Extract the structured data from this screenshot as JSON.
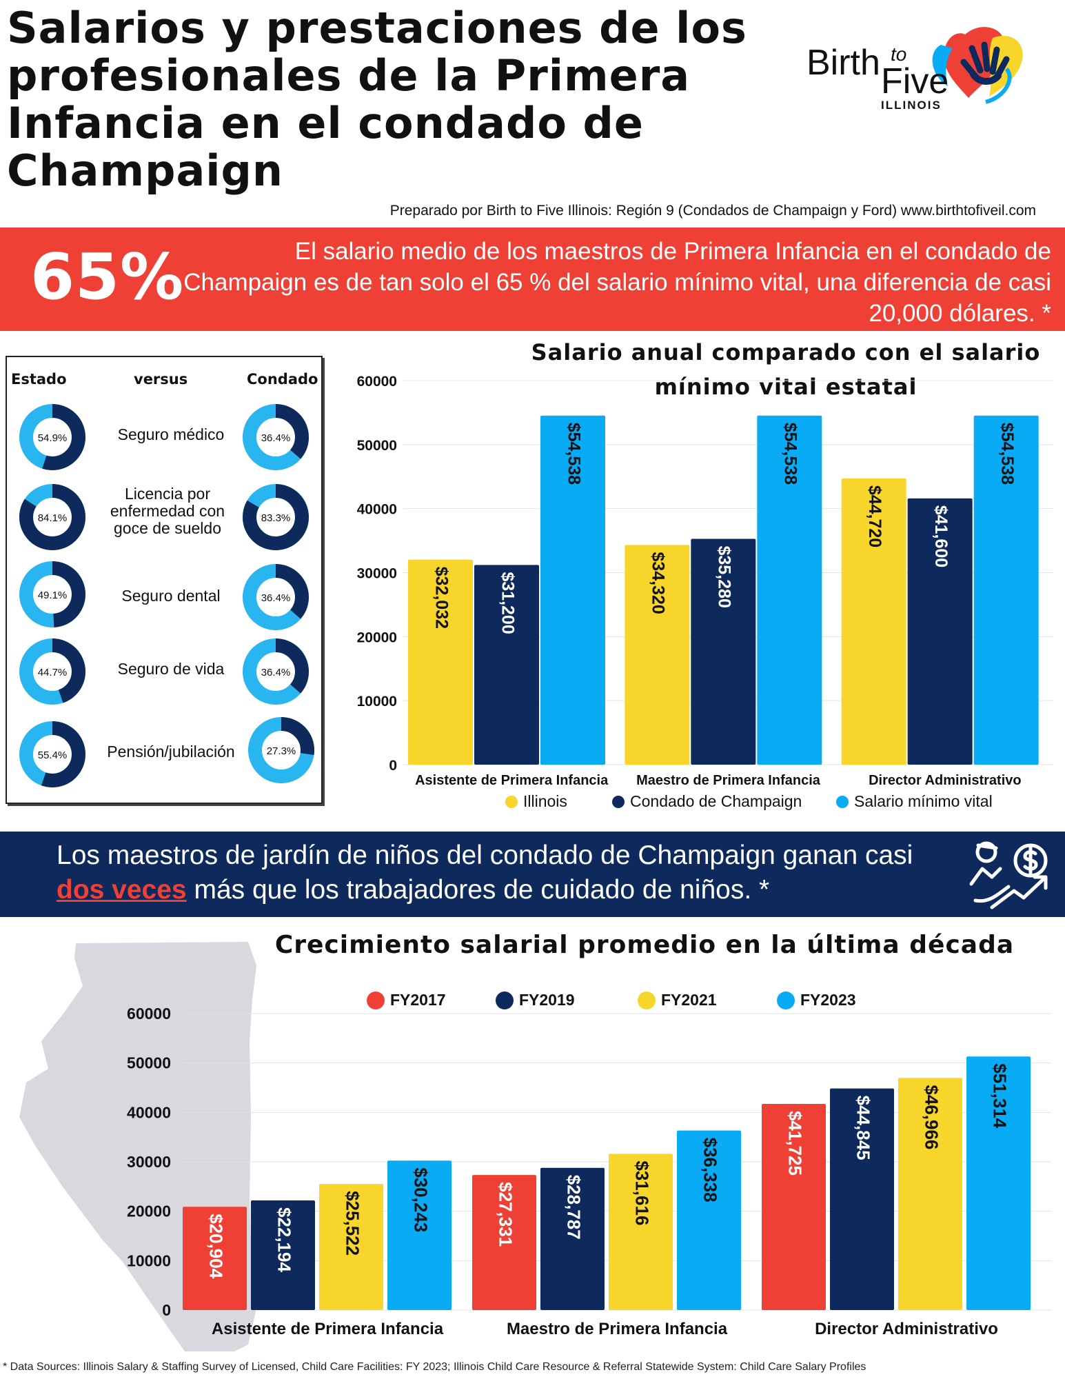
{
  "title": "Salarios y prestaciones de los profesionales de la Primera Infancia en el condado de Champaign",
  "logo": {
    "birth": "Birth",
    "to": "to",
    "five": "Five",
    "state": "ILLINOIS"
  },
  "prepared_by": "Preparado por Birth to Five Illinois: Región 9 (Condados de Champaign y Ford) www.birthtofiveil.com",
  "banner_red": {
    "percent": "65%",
    "text": "El salario medio de los maestros de Primera Infancia en el condado de Champaign es de tan solo el 65 % del salario mínimo vital, una diferencia de casi 20,000 dólares. *"
  },
  "benefits": {
    "header_state": "Estado",
    "header_versus": "versus",
    "header_county": "Condado",
    "rows": [
      {
        "label": "Seguro médico",
        "state": "54.9%",
        "state_value": 54.9,
        "county": "36.4%",
        "county_value": 36.4
      },
      {
        "label": "Licencia por enfermedad con goce de sueldo",
        "state": "84.1%",
        "state_value": 84.1,
        "county": "83.3%",
        "county_value": 83.3
      },
      {
        "label": "Seguro dental",
        "state": "49.1%",
        "state_value": 49.1,
        "county": "36.4%",
        "county_value": 36.4
      },
      {
        "label": "Seguro de vida",
        "state": "44.7%",
        "state_value": 44.7,
        "county": "36.4%",
        "county_value": 36.4
      },
      {
        "label": "Pensión/jubilación",
        "state": "55.4%",
        "state_value": 55.4,
        "county": "27.3%",
        "county_value": 27.3
      }
    ]
  },
  "banner_blue": {
    "text_before": "Los maestros de jardín de niños del condado de Champaign ganan casi",
    "highlight": "dos veces",
    "text_after": "más que los trabajadores de cuidado de niños. *"
  },
  "footnote": "* Data Sources: Illinois Salary & Staffing Survey of Licensed, Child Care Facilities: FY 2023; Illinois Child Care Resource & Referral Statewide System: Child Care Salary Profiles",
  "colors": {
    "red": "#ef4036",
    "navy": "#0e2a5c",
    "yellow": "#f8d52b",
    "blue": "#0aabf5",
    "light_blue": "#29b5f0",
    "map_gray": "#d8d8de"
  },
  "chart_data": [
    {
      "type": "bar",
      "title": "Salario anual comparado con el salario mínimo vital estatal",
      "categories": [
        "Asistente de Primera Infancia",
        "Maestro de Primera Infancia",
        "Director Administrativo"
      ],
      "series": [
        {
          "name": "Illinois",
          "color": "#f8d52b",
          "values": [
            32032,
            34320,
            44720
          ],
          "labels": [
            "$32,032",
            "$34,320",
            "$44,720"
          ],
          "label_color": "#111111"
        },
        {
          "name": "Condado de Champaign",
          "color": "#0e2a5c",
          "values": [
            31200,
            35280,
            41600
          ],
          "labels": [
            "$31,200",
            "$35,280",
            "$41,600"
          ],
          "label_color": "#ffffff"
        },
        {
          "name": "Salario mínimo vital",
          "color": "#0aabf5",
          "values": [
            54538,
            54538,
            54538
          ],
          "labels": [
            "$54,538",
            "$54,538",
            "$54,538"
          ],
          "label_color": "#111111"
        }
      ],
      "yticks": [
        "0",
        "10000",
        "20000",
        "30000",
        "40000",
        "50000",
        "60000"
      ],
      "ylim": [
        0,
        60000
      ],
      "legend": "bottom"
    },
    {
      "type": "bar",
      "title": "Crecimiento salarial promedio en la última década",
      "categories": [
        "Asistente de Primera Infancia",
        "Maestro de Primera Infancia",
        "Director Administrativo"
      ],
      "series": [
        {
          "name": "FY2017",
          "color": "#ef4036",
          "values": [
            20904,
            27331,
            41725
          ],
          "labels": [
            "$20,904",
            "$27,331",
            "$41,725"
          ],
          "label_color": "#ffffff"
        },
        {
          "name": "FY2019",
          "color": "#0e2a5c",
          "values": [
            22194,
            28787,
            44845
          ],
          "labels": [
            "$22,194",
            "$28,787",
            "$44,845"
          ],
          "label_color": "#ffffff"
        },
        {
          "name": "FY2021",
          "color": "#f8d52b",
          "values": [
            25522,
            31616,
            46966
          ],
          "labels": [
            "$25,522",
            "$31,616",
            "$46,966"
          ],
          "label_color": "#111111"
        },
        {
          "name": "FY2023",
          "color": "#0aabf5",
          "values": [
            30243,
            36338,
            51314
          ],
          "labels": [
            "$30,243",
            "$36,338",
            "$51,314"
          ],
          "label_color": "#111111"
        }
      ],
      "yticks": [
        "0",
        "10000",
        "20000",
        "30000",
        "40000",
        "50000",
        "60000"
      ],
      "ylim": [
        0,
        60000
      ],
      "legend": "top"
    }
  ]
}
